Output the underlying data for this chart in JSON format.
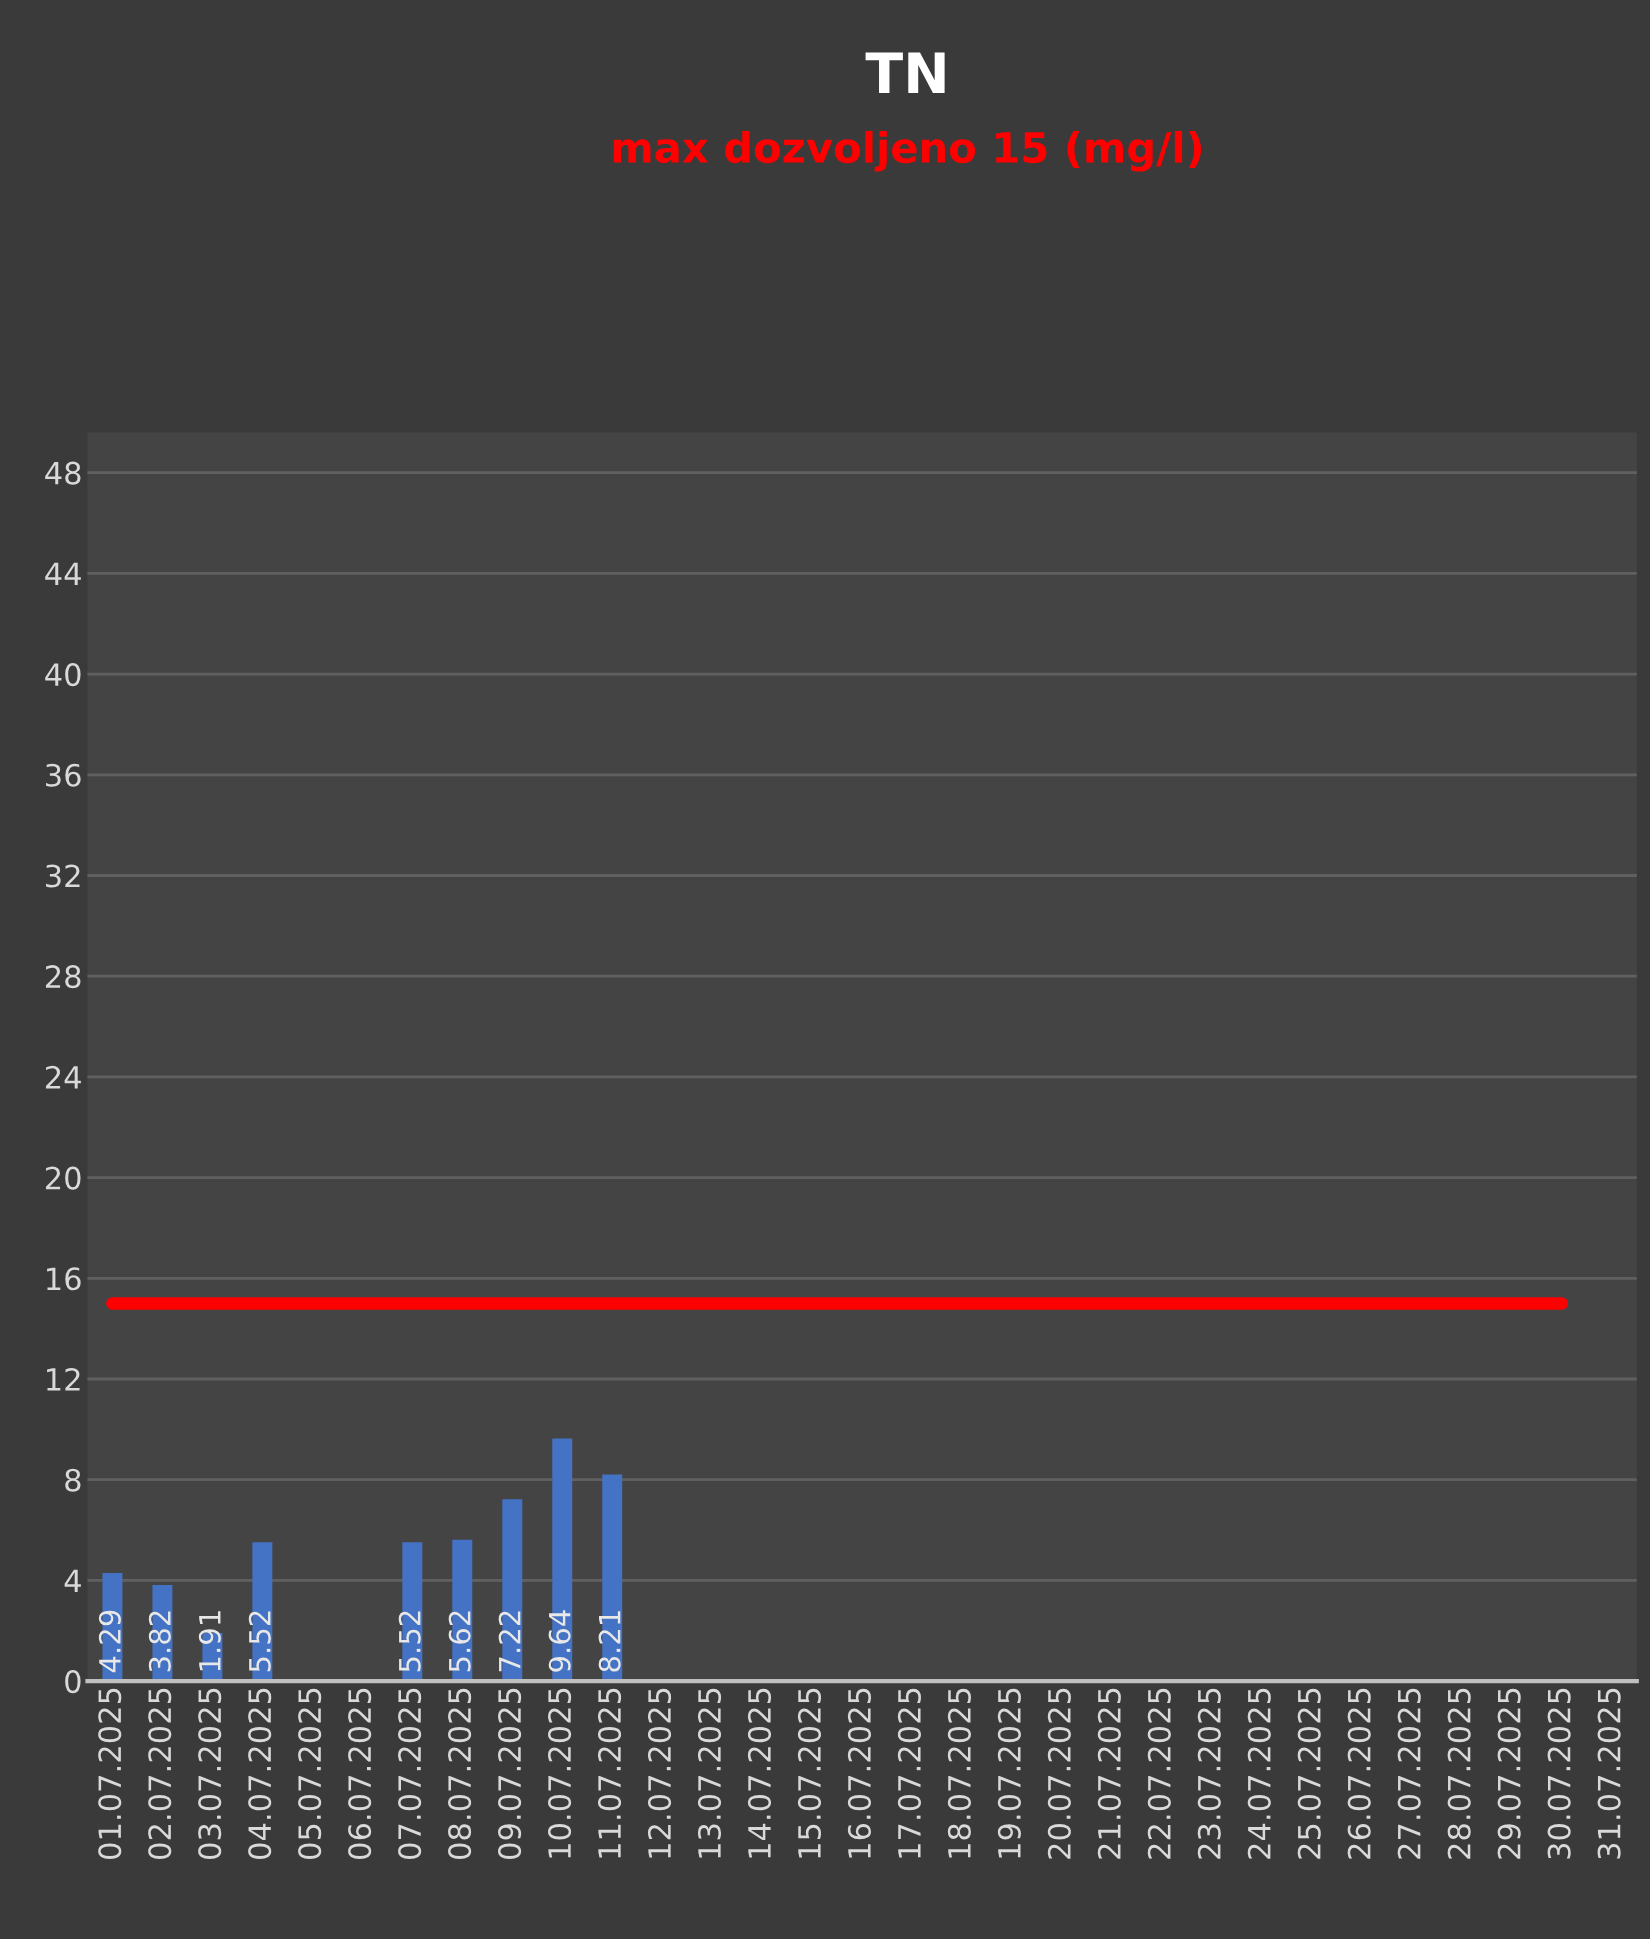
{
  "chart_data": {
    "type": "bar",
    "title": "TN",
    "subtitle": "max dozvoljeno 15 (mg/l)",
    "categories": [
      "01.07.2025",
      "02.07.2025",
      "03.07.2025",
      "04.07.2025",
      "05.07.2025",
      "06.07.2025",
      "07.07.2025",
      "08.07.2025",
      "09.07.2025",
      "10.07.2025",
      "11.07.2025",
      "12.07.2025",
      "13.07.2025",
      "14.07.2025",
      "15.07.2025",
      "16.07.2025",
      "17.07.2025",
      "18.07.2025",
      "19.07.2025",
      "20.07.2025",
      "21.07.2025",
      "22.07.2025",
      "23.07.2025",
      "24.07.2025",
      "25.07.2025",
      "26.07.2025",
      "27.07.2025",
      "28.07.2025",
      "29.07.2025",
      "30.07.2025",
      "31.07.2025"
    ],
    "series": [
      {
        "color": "#4472c4",
        "values": [
          4.29,
          3.82,
          1.91,
          5.52,
          null,
          null,
          5.52,
          5.62,
          7.22,
          9.64,
          8.21,
          null,
          null,
          null,
          null,
          null,
          null,
          null,
          null,
          null,
          null,
          null,
          null,
          null,
          null,
          null,
          null,
          null,
          null,
          null,
          null
        ],
        "data_labels": true
      },
      {
        "type": "line",
        "color": "#ff0000",
        "values": [
          15,
          15,
          15,
          15,
          15,
          15,
          15,
          15,
          15,
          15,
          15,
          15,
          15,
          15,
          15,
          15,
          15,
          15,
          15,
          15,
          15,
          15,
          15,
          15,
          15,
          15,
          15,
          15,
          15,
          15,
          null
        ]
      }
    ],
    "ylim": [
      0,
      49.6
    ],
    "yticks": [
      0,
      4,
      8,
      12,
      16,
      20,
      24,
      28,
      32,
      36,
      40,
      44,
      48
    ],
    "grid": "y",
    "legend": false
  }
}
